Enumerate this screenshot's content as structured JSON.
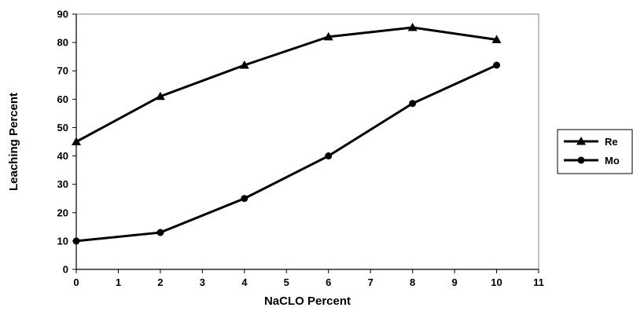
{
  "chart_data": {
    "type": "line",
    "title": "",
    "xlabel": "NaCLO Percent",
    "ylabel": "Leaching Percent",
    "xlim": [
      0,
      11
    ],
    "ylim": [
      0,
      90
    ],
    "x_ticks": [
      0,
      1,
      2,
      3,
      4,
      5,
      6,
      7,
      8,
      9,
      10,
      11
    ],
    "y_ticks": [
      0,
      10,
      20,
      30,
      40,
      50,
      60,
      70,
      80,
      90
    ],
    "grid": false,
    "legend_position": "right",
    "series": [
      {
        "name": "Re",
        "marker": "triangle",
        "color": "#000000",
        "x": [
          0,
          2,
          4,
          6,
          8,
          10
        ],
        "y": [
          45,
          61,
          72,
          82,
          85.3,
          81
        ]
      },
      {
        "name": "Mo",
        "marker": "circle",
        "color": "#000000",
        "x": [
          0,
          2,
          4,
          6,
          8,
          10
        ],
        "y": [
          10,
          13,
          25,
          40,
          58.5,
          72
        ]
      }
    ]
  }
}
